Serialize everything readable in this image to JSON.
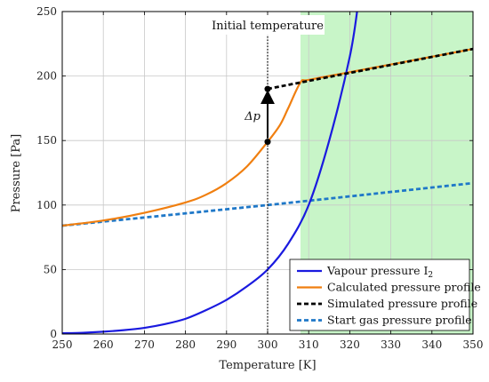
{
  "chart_data": {
    "type": "line",
    "xlabel": "Temperature [K]",
    "ylabel": "Pressure [Pa]",
    "xlim": [
      250,
      350
    ],
    "ylim": [
      0,
      250
    ],
    "xticks": [
      250,
      260,
      270,
      280,
      290,
      300,
      310,
      320,
      330,
      340,
      350
    ],
    "yticks": [
      0,
      50,
      100,
      150,
      200,
      250
    ],
    "grid": true,
    "legend_position": "bottom-right",
    "shaded_region": {
      "x_from": 308,
      "x_to": 350,
      "color": "#c8f5c8"
    },
    "vertical_line": {
      "x": 300,
      "label": "Initial temperature"
    },
    "delta_arrow": {
      "x": 300,
      "y_from": 149,
      "y_to": 190,
      "label": "Δp"
    },
    "series": [
      {
        "name": "Vapour pressure I",
        "name_subscript": "2",
        "color": "#1a1adf",
        "dash": "solid",
        "x": [
          250,
          255,
          260,
          265,
          270,
          275,
          280,
          285,
          290,
          295,
          300,
          305,
          310,
          315,
          320,
          322
        ],
        "y": [
          0.6,
          1.0,
          1.8,
          3.0,
          4.8,
          7.7,
          11.8,
          18.5,
          26.5,
          37.0,
          50.0,
          70.0,
          100.0,
          150.0,
          215.0,
          255.0
        ]
      },
      {
        "name": "Calculated pressure profile",
        "color": "#f07f10",
        "dash": "solid",
        "x": [
          250,
          260,
          270,
          280,
          285,
          290,
          295,
          300,
          303,
          305,
          308,
          310,
          320,
          330,
          340,
          350
        ],
        "y": [
          84,
          88,
          94,
          102,
          108,
          117,
          130,
          149,
          162,
          175,
          195,
          197,
          203,
          209,
          215,
          221
        ]
      },
      {
        "name": "Simulated pressure profile",
        "color": "#000000",
        "dash": "dashed",
        "x": [
          300,
          308,
          350
        ],
        "y": [
          190,
          195,
          221
        ]
      },
      {
        "name": "Start gas pressure profile",
        "color": "#1f78c8",
        "dash": "dashed",
        "x": [
          250,
          300,
          350
        ],
        "y": [
          84,
          100,
          117
        ]
      }
    ]
  }
}
